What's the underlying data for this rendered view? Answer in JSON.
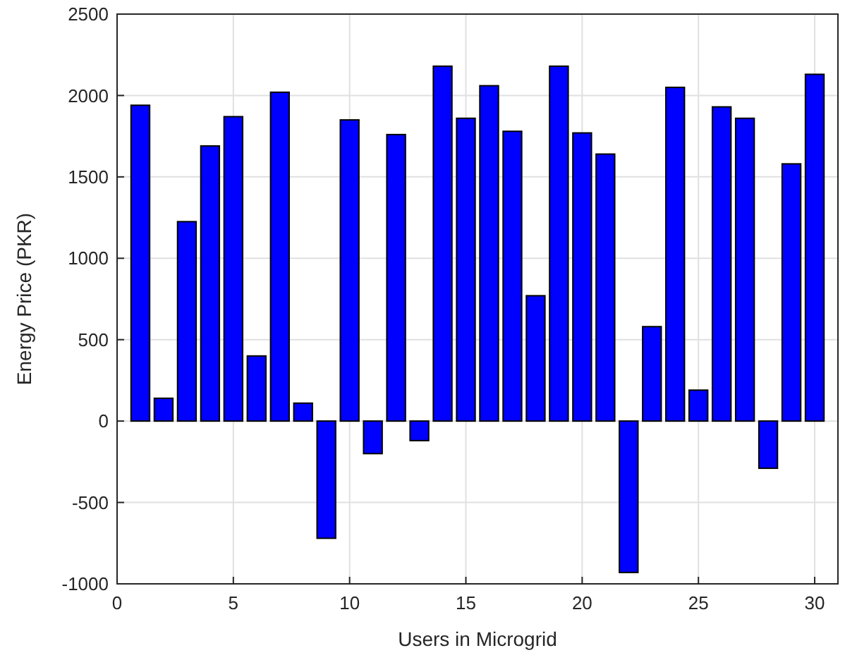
{
  "chart_data": {
    "type": "bar",
    "xlabel": "Users in Microgrid",
    "ylabel": "Energy Price (PKR)",
    "x": [
      1,
      2,
      3,
      4,
      5,
      6,
      7,
      8,
      9,
      10,
      11,
      12,
      13,
      14,
      15,
      16,
      17,
      18,
      19,
      20,
      21,
      22,
      23,
      24,
      25,
      26,
      27,
      28,
      29,
      30
    ],
    "values": [
      1940,
      140,
      1225,
      1690,
      1870,
      400,
      2020,
      110,
      -720,
      1850,
      -200,
      1760,
      -120,
      2180,
      1860,
      2060,
      1780,
      770,
      2180,
      1770,
      1640,
      -930,
      580,
      2050,
      190,
      1930,
      1860,
      -290,
      1580,
      2130
    ],
    "color": "#0000ff",
    "xlim": [
      0,
      31
    ],
    "xticks": [
      0,
      5,
      10,
      15,
      20,
      25,
      30
    ],
    "ylim": [
      -1000,
      2500
    ],
    "yticks": [
      -1000,
      -500,
      0,
      500,
      1000,
      1500,
      2000,
      2500
    ],
    "grid": true
  }
}
